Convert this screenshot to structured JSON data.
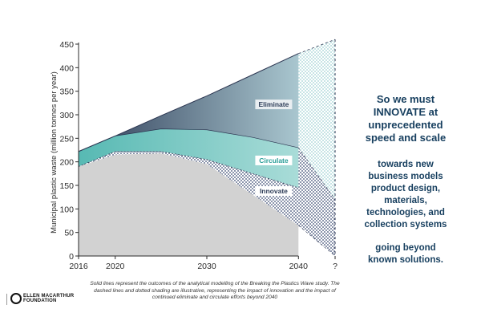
{
  "chart_data": {
    "type": "area",
    "ylabel": "Municipal plastic waste (million tonnes per year)",
    "ylim": [
      0,
      450
    ],
    "xlim": [
      2016,
      2044
    ],
    "yticks": [
      0,
      50,
      100,
      150,
      200,
      250,
      300,
      350,
      400,
      450
    ],
    "xticks": [
      {
        "value": 2016,
        "label": "2016"
      },
      {
        "value": 2020,
        "label": "2020"
      },
      {
        "value": 2030,
        "label": "2030"
      },
      {
        "value": 2040,
        "label": "2040"
      },
      {
        "value": 2044,
        "label": "?"
      }
    ],
    "series": [
      {
        "name": "Eliminate",
        "x": [
          2016,
          2020,
          2025,
          2030,
          2035,
          2040
        ],
        "values": [
          222,
          255,
          298,
          340,
          385,
          430
        ]
      },
      {
        "name": "Circulate",
        "x": [
          2016,
          2020,
          2025,
          2030,
          2035,
          2040
        ],
        "values": [
          222,
          255,
          270,
          268,
          252,
          230
        ]
      },
      {
        "name": "Innovate",
        "x": [
          2016,
          2020,
          2025,
          2030,
          2035,
          2040
        ],
        "values": [
          190,
          222,
          222,
          205,
          175,
          145
        ]
      },
      {
        "x": [
          2016,
          2020,
          2025,
          2030,
          2035,
          2040
        ],
        "values": [
          190,
          215,
          218,
          195,
          130,
          65
        ]
      }
    ],
    "dashed_extension": {
      "x": [
        2040,
        2044
      ],
      "upper": [
        430,
        460
      ],
      "lower": [
        230,
        120
      ],
      "floor": [
        65,
        0
      ]
    },
    "colors": {
      "baseline": "#d2d2d2",
      "eliminate_top": "#2e3d58",
      "eliminate_bottom": "#a9c6cf",
      "circulate_top": "#57b9b3",
      "circulate_bottom": "#a9dcd8",
      "innovate_dots": "#3a4a72",
      "extension_dots": "#9fd1d3"
    }
  },
  "side_panel": {
    "headline": "So we must\nINNOVATE at\nunprecedented\nspeed and scale",
    "body_1": "towards new\nbusiness models\nproduct design,\nmaterials,\ntechnologies, and\ncollection systems",
    "body_2": "going beyond\nknown solutions."
  },
  "footnote": "Solid lines represent the outcomes of the analytical modelling of the Breaking the Plastics Wave study. The dashed lines and dotted shading are illustrative, representing the impact of innovation and the impact of continued eliminate and circulate efforts beyond 2040",
  "logo": {
    "text": "ELLEN MACARTHUR\nFOUNDATION"
  }
}
